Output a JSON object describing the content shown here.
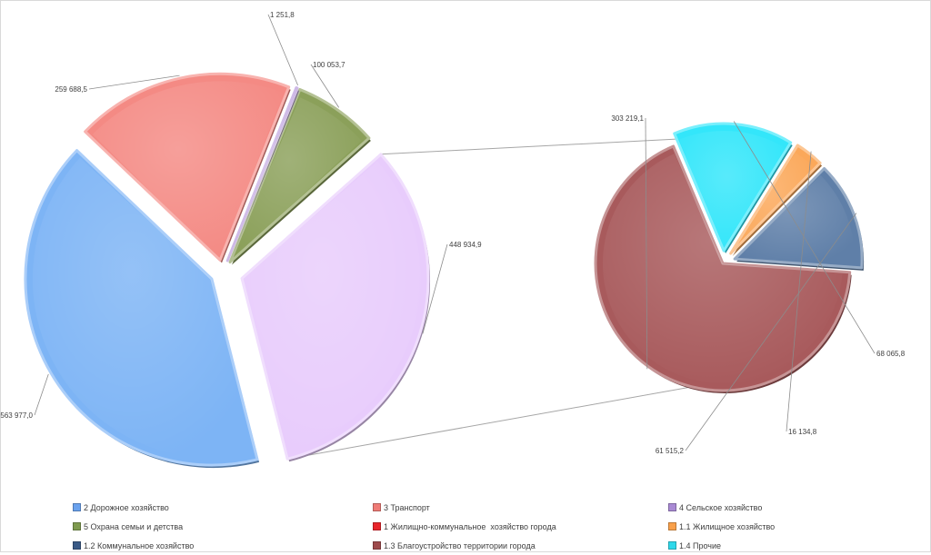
{
  "chart_data": {
    "type": "pie",
    "subtype": "pie-of-pie",
    "primary": {
      "slices": [
        {
          "label": "5 Охрана семьи и детства",
          "value": 100053.7,
          "value_text": "100 053,7",
          "color": "#8ba05a"
        },
        {
          "label": "1 Жилищно-коммунальное  хозяйство города",
          "value": 448934.9,
          "value_text": "448 934,9",
          "color": "#e8ccfc"
        },
        {
          "label": "2 Дорожное хозяйство",
          "value": 563977.0,
          "value_text": "563 977,0",
          "color": "#7db4f5"
        },
        {
          "label": "3 Транспорт",
          "value": 259688.5,
          "value_text": "259 688,5",
          "color": "#f48a84"
        },
        {
          "label": "4 Сельское хозяйство",
          "value": 1251.8,
          "value_text": "1 251,8",
          "color": "#b393d8"
        }
      ]
    },
    "secondary": {
      "parent": "1 Жилищно-коммунальное  хозяйство города",
      "slices": [
        {
          "label": "1.3 Благоустройство территории города",
          "value": 303219.1,
          "value_text": "303 219,1",
          "color": "#a85a5c"
        },
        {
          "label": "1.4 Прочие",
          "value": 68065.8,
          "value_text": "68 065,8",
          "color": "#33e6fa"
        },
        {
          "label": "1.1 Жилищное хозяйство",
          "value": 16134.8,
          "value_text": "16 134,8",
          "color": "#fba85a"
        },
        {
          "label": "1.2 Коммунальное хозяйство",
          "value": 61515.2,
          "value_text": "61 515,2",
          "color": "#5f7fa8"
        }
      ]
    },
    "legend": {
      "placement": "bottom",
      "rows": [
        [
          {
            "label": "2 Дорожное хозяйство",
            "color": "#6aa2ee"
          },
          {
            "label": "3 Транспорт",
            "color": "#ef7b76"
          },
          {
            "label": "4 Сельское хозяйство",
            "color": "#a98ad4"
          }
        ],
        [
          {
            "label": "5 Охрана семьи и детства",
            "color": "#7e9a4f"
          },
          {
            "label": "1 Жилищно-коммунальное  хозяйство города",
            "color": "#e8252b"
          },
          {
            "label": "1.1 Жилищное хозяйство",
            "color": "#f9a04a"
          }
        ],
        [
          {
            "label": "1.2 Коммунальное хозяйство",
            "color": "#3a5a86"
          },
          {
            "label": "1.3 Благоустройство территории города",
            "color": "#9e4a4c"
          },
          {
            "label": "1.4 Прочие",
            "color": "#2ed8ea"
          }
        ]
      ]
    }
  }
}
